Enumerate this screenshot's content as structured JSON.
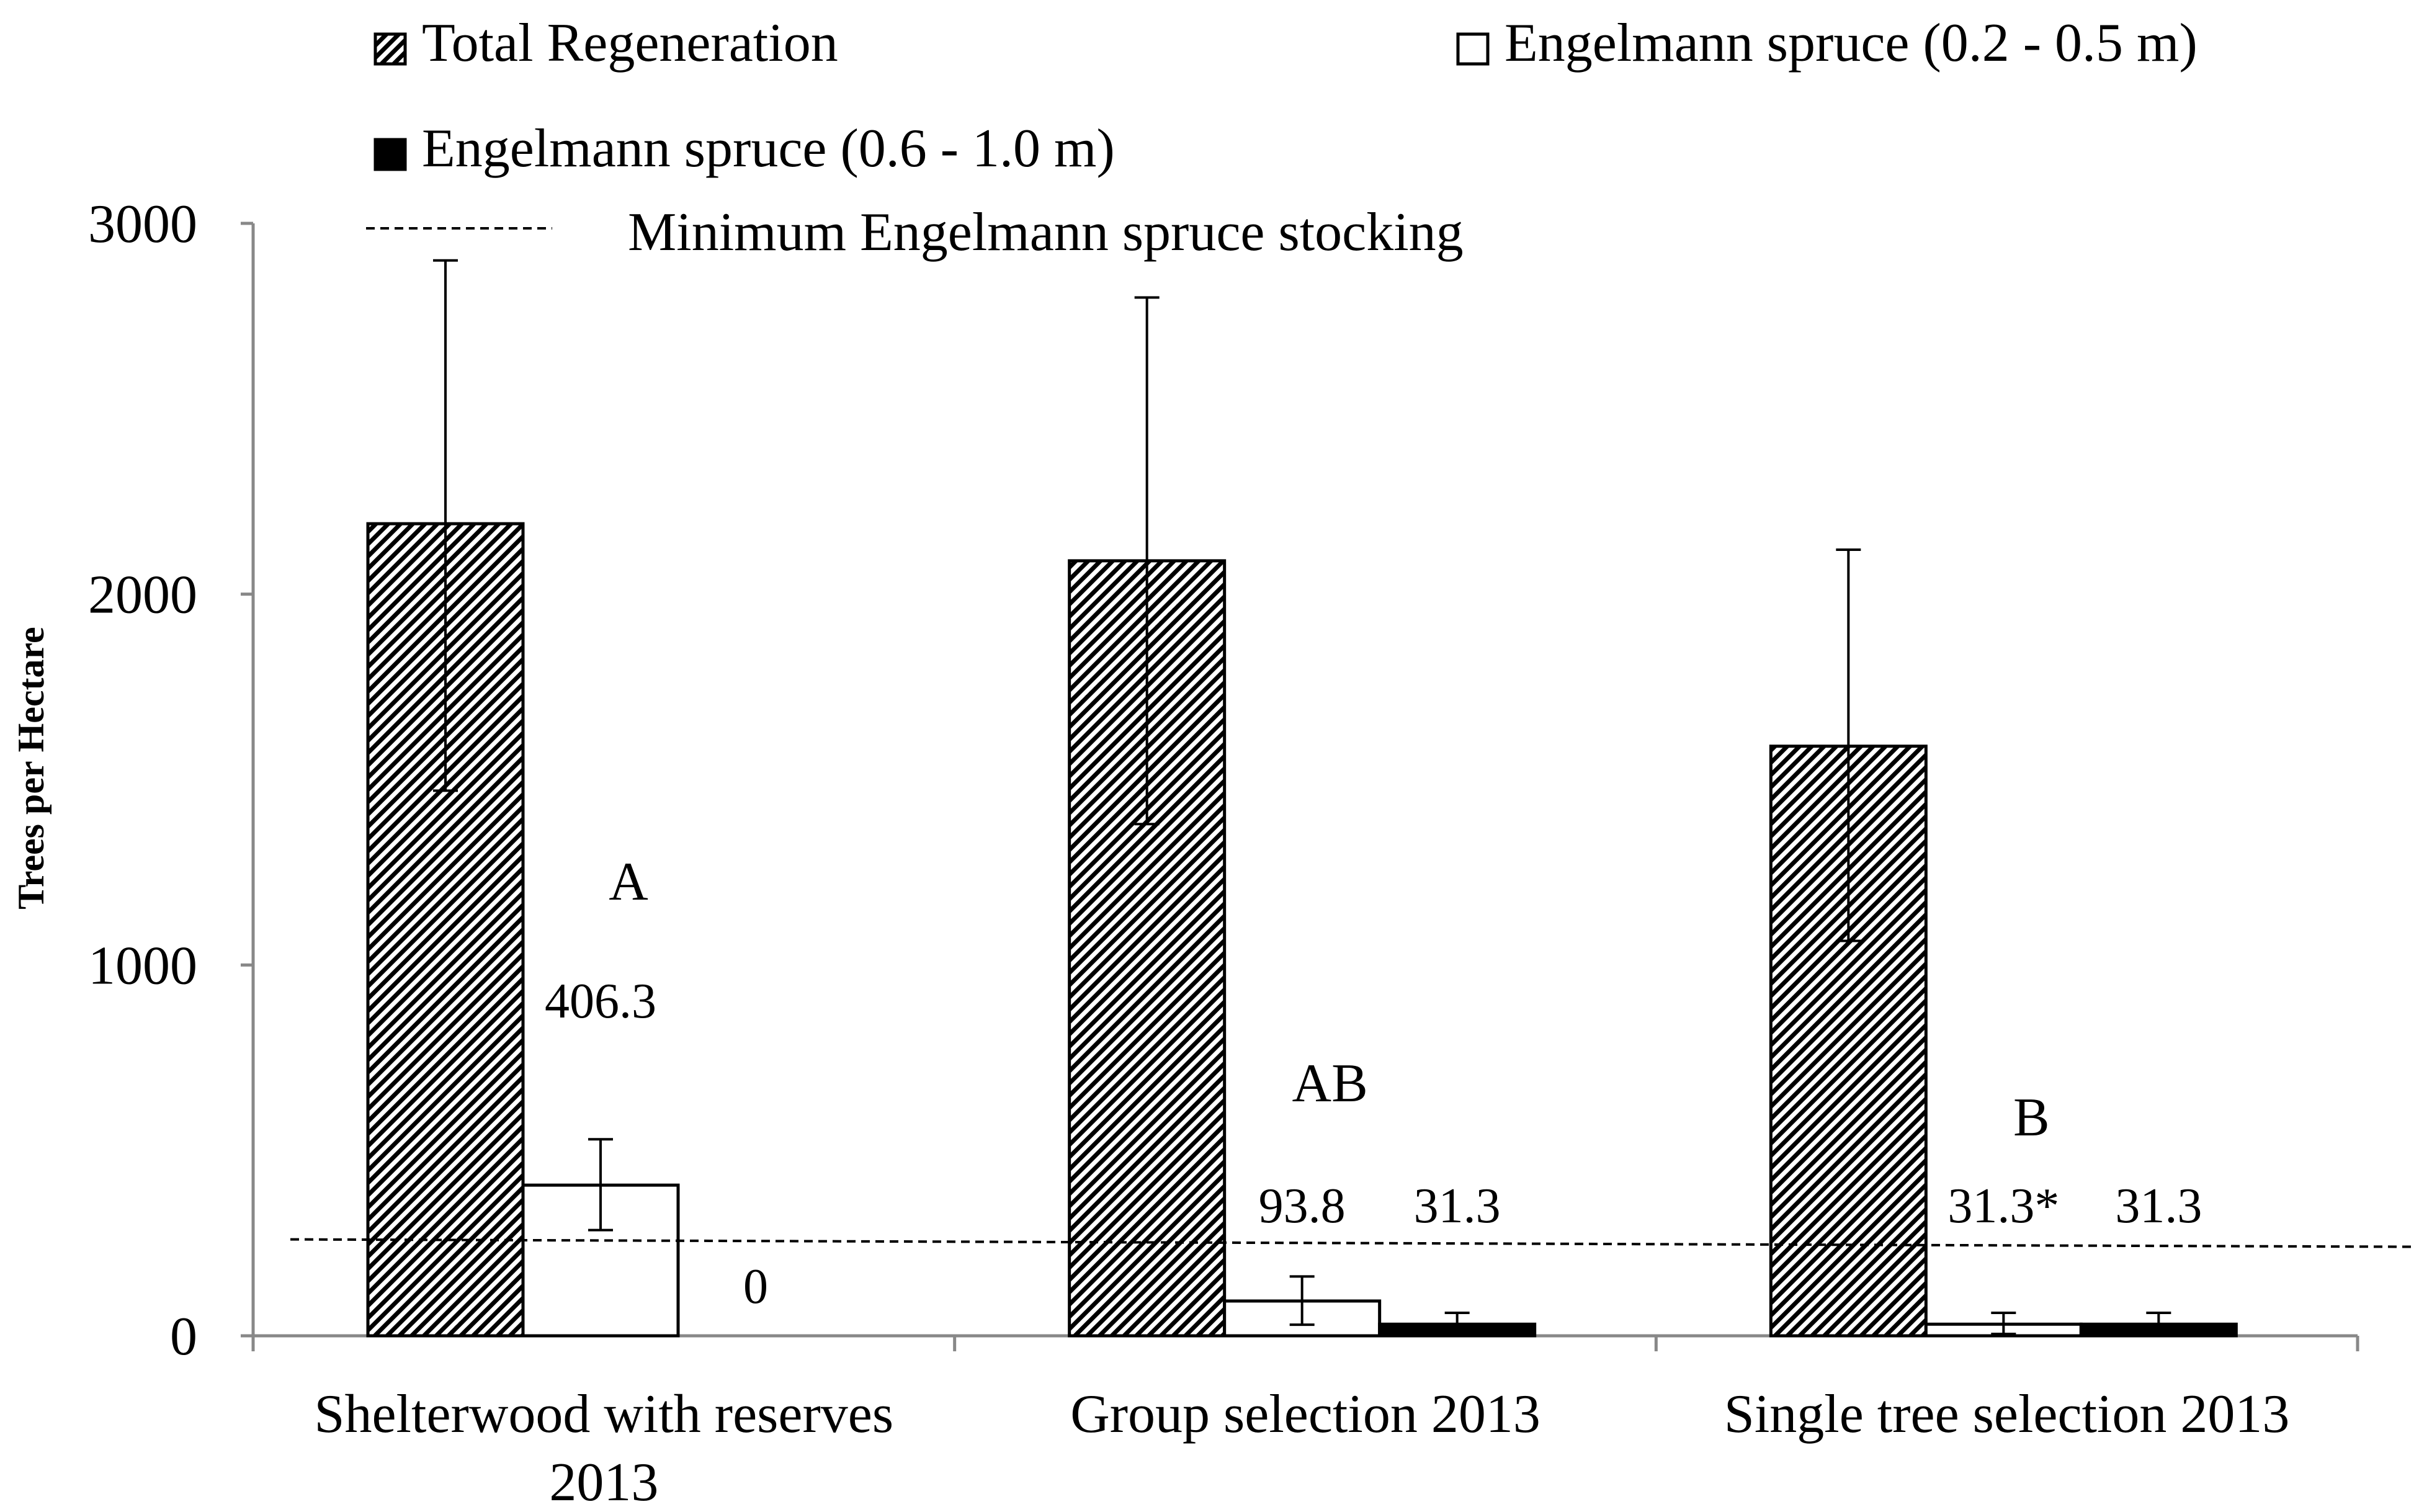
{
  "chart_data": {
    "type": "bar",
    "title": "",
    "xlabel": "",
    "ylabel": "Trees per Hectare",
    "ylim": [
      0,
      3000
    ],
    "yticks": [
      0,
      1000,
      2000,
      3000
    ],
    "categories": [
      "Shelterwood with reserves 2013",
      "Group selection 2013",
      "Single tree selection 2013"
    ],
    "category_lines": [
      [
        "Shelterwood with reserves",
        "2013"
      ],
      [
        "Group selection 2013"
      ],
      [
        "Single tree selection 2013"
      ]
    ],
    "series": [
      {
        "name": "Total Regeneration",
        "pattern": "hatch",
        "values": [
          2190,
          2090,
          1590
        ],
        "err_low": [
          1470,
          1380,
          1065
        ],
        "err_high": [
          2900,
          2800,
          2120
        ]
      },
      {
        "name": "Engelmann spruce (0.2 - 0.5 m)",
        "pattern": "white",
        "values": [
          406.3,
          93.8,
          31.3
        ],
        "err_low": [
          285,
          30,
          5
        ],
        "err_high": [
          530,
          160,
          62
        ]
      },
      {
        "name": "Engelmann spruce (0.6 - 1.0 m)",
        "pattern": "black",
        "values": [
          0,
          31.3,
          31.3
        ],
        "err_low": [
          null,
          5,
          5
        ],
        "err_high": [
          null,
          62,
          62
        ]
      }
    ],
    "data_labels": {
      "spruce_small": [
        "406.3",
        "93.8",
        "31.3*"
      ],
      "spruce_large": [
        "0",
        "31.3",
        "31.3"
      ]
    },
    "group_letters": [
      "A",
      "AB",
      "B"
    ],
    "reference_line": {
      "name": "Minimum Engelmann spruce stocking",
      "value_start": 260,
      "value_end": 240
    },
    "legend_position": "top"
  }
}
